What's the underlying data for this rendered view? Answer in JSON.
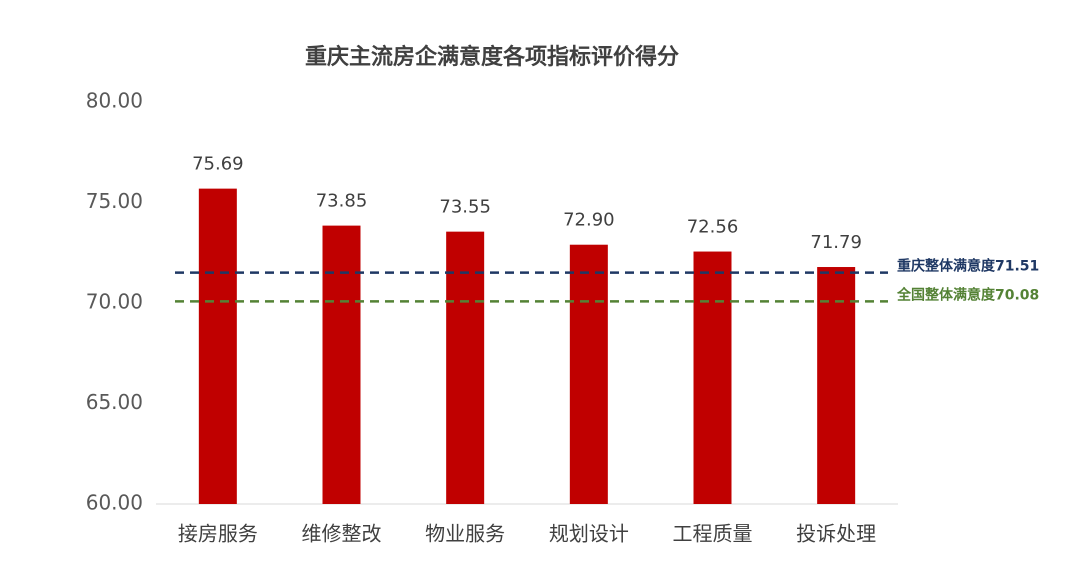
{
  "chart_data": {
    "type": "bar",
    "title": "重庆主流房企满意度各项指标评价得分",
    "categories": [
      "接房服务",
      "维修整改",
      "物业服务",
      "规划设计",
      "工程质量",
      "投诉处理"
    ],
    "values": [
      75.69,
      73.85,
      73.55,
      72.9,
      72.56,
      71.79
    ],
    "value_labels": [
      "75.69",
      "73.85",
      "73.55",
      "72.90",
      "72.56",
      "71.79"
    ],
    "color": "#c00000",
    "ylim": [
      60,
      80
    ],
    "yticks": [
      {
        "value": 60,
        "label": "60.00"
      },
      {
        "value": 65,
        "label": "65.00"
      },
      {
        "value": 70,
        "label": "70.00"
      },
      {
        "value": 75,
        "label": "75.00"
      },
      {
        "value": 80,
        "label": "80.00"
      }
    ],
    "grid": false,
    "reference_lines": [
      {
        "label": "重庆整体满意度71.51",
        "value": 71.51,
        "color": "#1f3864"
      },
      {
        "label": "全国整体满意度70.08",
        "value": 70.08,
        "color": "#548235"
      }
    ]
  }
}
